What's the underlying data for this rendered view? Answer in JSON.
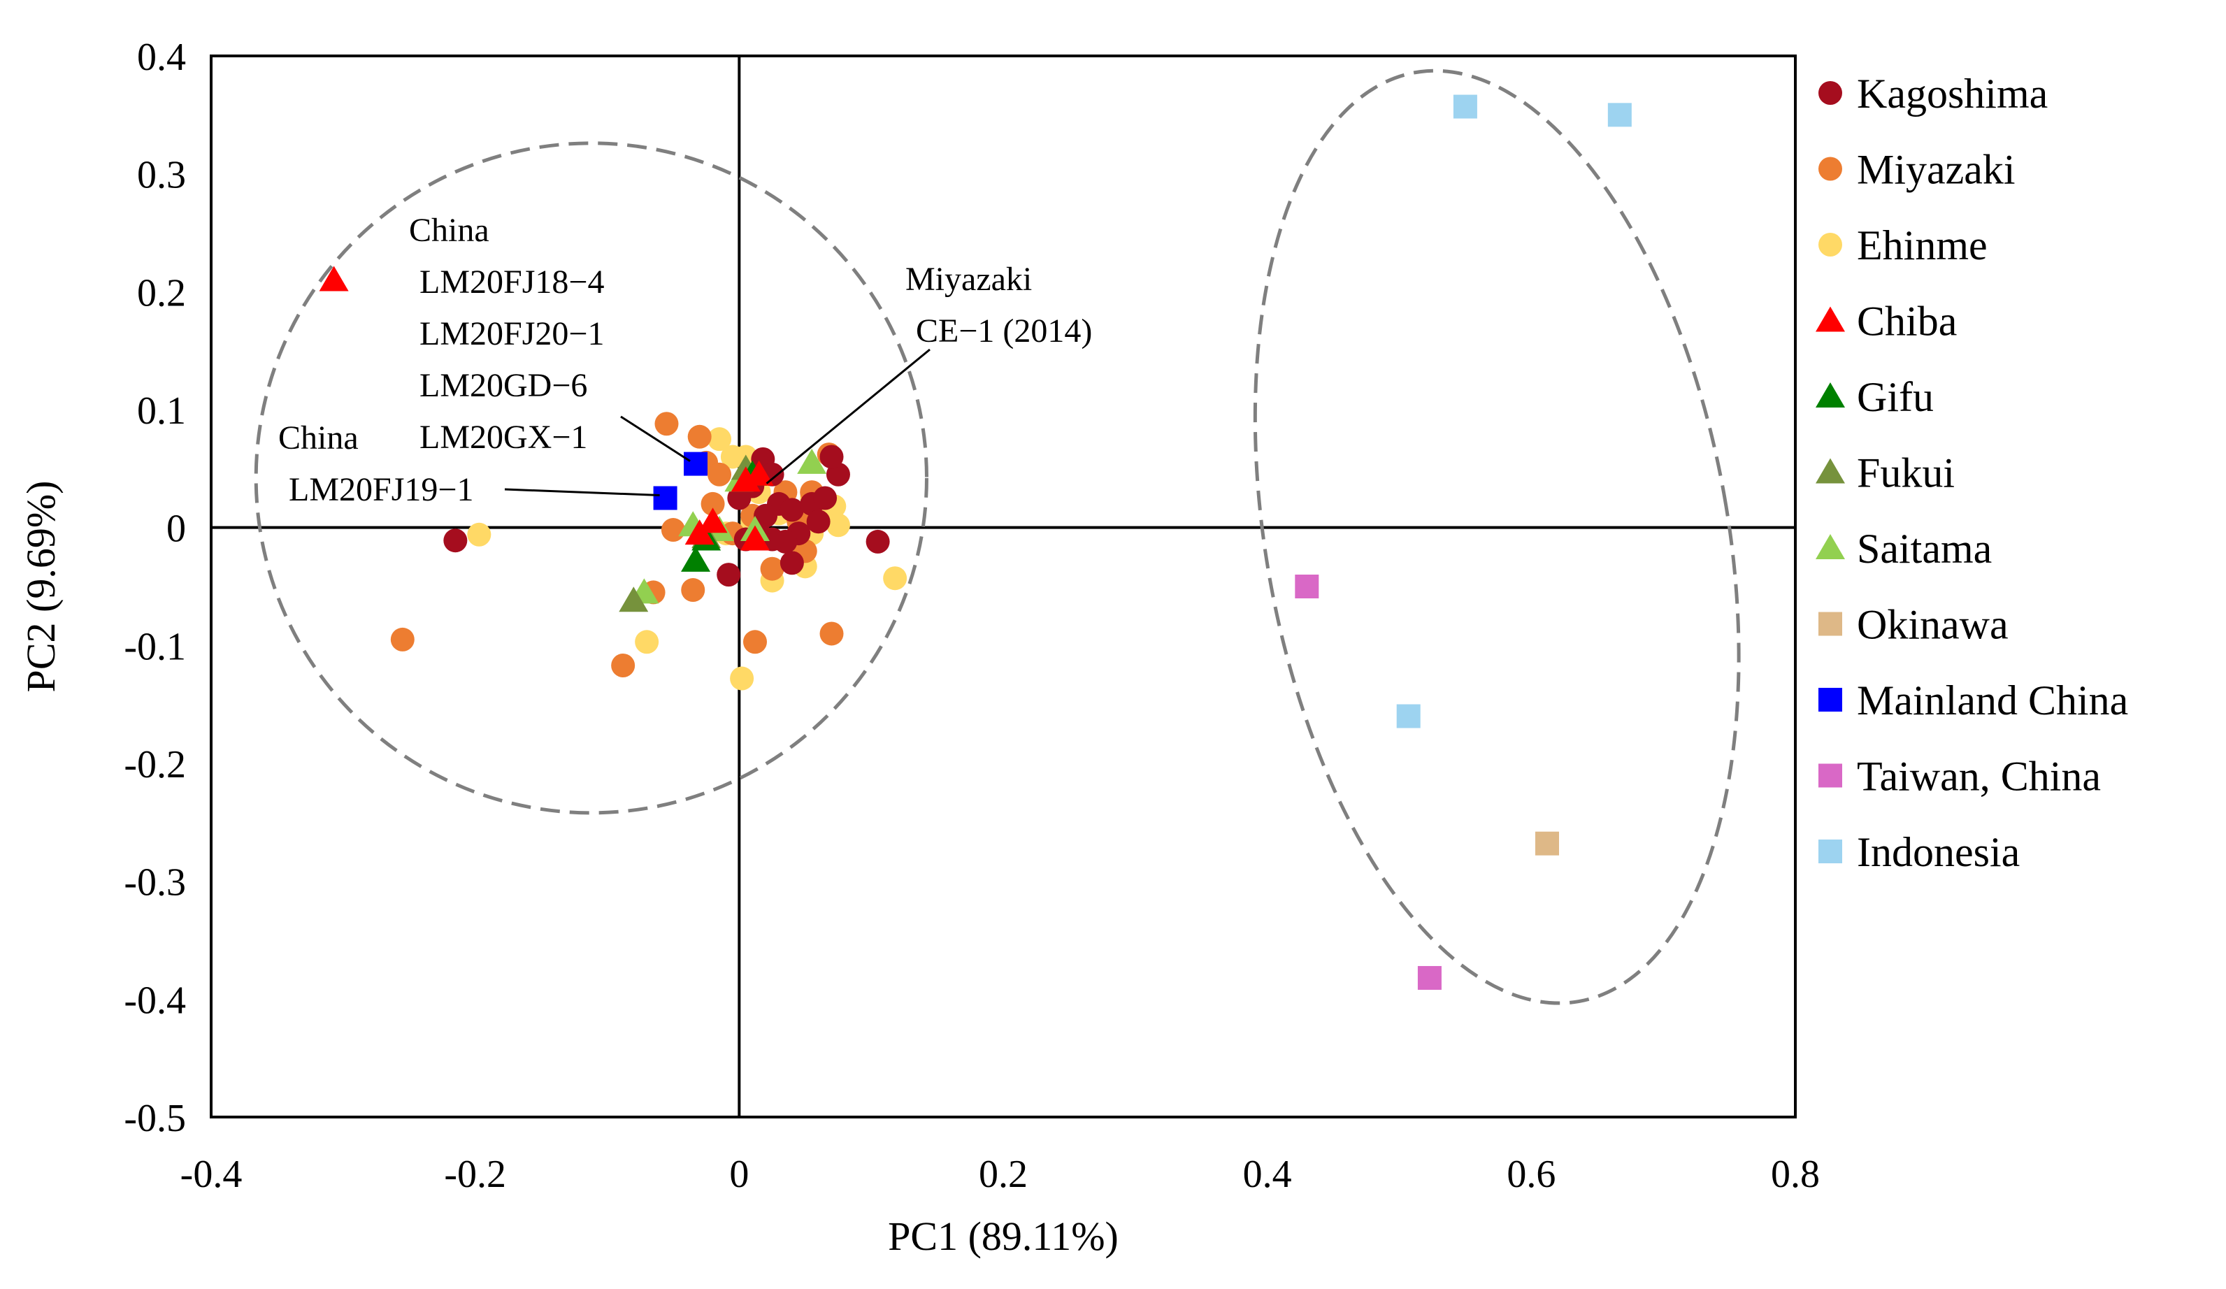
{
  "chart_data": {
    "type": "scatter",
    "xlabel": "PC1 (89.11%)",
    "ylabel": "PC2 (9.69%)",
    "xlim": [
      -0.4,
      0.8
    ],
    "ylim": [
      -0.5,
      0.4
    ],
    "xticks": [
      -0.4,
      -0.2,
      0,
      0.2,
      0.4,
      0.6,
      0.8
    ],
    "xtick_labels": [
      "-0.4",
      "-0.2",
      "0",
      "0.2",
      "0.4",
      "0.6",
      "0.8"
    ],
    "yticks": [
      0.4,
      0.3,
      0.2,
      0.1,
      0,
      -0.1,
      -0.2,
      -0.3,
      -0.4,
      -0.5
    ],
    "ytick_labels": [
      "0.4",
      "0.3",
      "0.2",
      "0.1",
      "0",
      "-0.1",
      "-0.2",
      "-0.3",
      "-0.4",
      "-0.5"
    ],
    "grid": false,
    "legend_position": "right",
    "series": [
      {
        "name": "Kagoshima",
        "marker": "circle",
        "color": "#A50D1E",
        "points": [
          [
            -0.215,
            -0.011
          ],
          [
            0.105,
            -0.012
          ],
          [
            0.018,
            0.058
          ],
          [
            0.025,
            0.045
          ],
          [
            0.01,
            0.035
          ],
          [
            0.0,
            0.025
          ],
          [
            0.03,
            0.02
          ],
          [
            0.04,
            0.015
          ],
          [
            0.02,
            0.01
          ],
          [
            0.055,
            0.02
          ],
          [
            0.065,
            0.025
          ],
          [
            0.075,
            0.045
          ],
          [
            0.07,
            0.06
          ],
          [
            0.06,
            0.005
          ],
          [
            0.045,
            -0.005
          ],
          [
            0.035,
            -0.012
          ],
          [
            0.025,
            -0.01
          ],
          [
            0.015,
            -0.005
          ],
          [
            0.005,
            -0.01
          ],
          [
            -0.008,
            -0.04
          ],
          [
            0.04,
            -0.03
          ]
        ]
      },
      {
        "name": "Miyazaki",
        "marker": "circle",
        "color": "#ED7D31",
        "points": [
          [
            -0.255,
            -0.095
          ],
          [
            -0.088,
            -0.117
          ],
          [
            -0.065,
            -0.055
          ],
          [
            -0.055,
            0.088
          ],
          [
            -0.05,
            -0.002
          ],
          [
            -0.035,
            -0.053
          ],
          [
            -0.03,
            0.077
          ],
          [
            -0.025,
            0.055
          ],
          [
            -0.02,
            0.02
          ],
          [
            -0.015,
            0.045
          ],
          [
            0.01,
            0.01
          ],
          [
            0.035,
            0.03
          ],
          [
            0.045,
            0.005
          ],
          [
            0.055,
            0.03
          ],
          [
            0.068,
            0.062
          ],
          [
            0.07,
            -0.09
          ],
          [
            0.012,
            -0.097
          ],
          [
            0.025,
            -0.035
          ],
          [
            0.05,
            -0.02
          ],
          [
            -0.005,
            -0.005
          ]
        ]
      },
      {
        "name": "Ehinme",
        "marker": "circle",
        "color": "#FFD966",
        "points": [
          [
            -0.197,
            -0.006
          ],
          [
            -0.07,
            -0.097
          ],
          [
            0.118,
            -0.043
          ],
          [
            0.002,
            -0.128
          ],
          [
            0.025,
            -0.045
          ],
          [
            0.05,
            -0.033
          ],
          [
            0.055,
            -0.005
          ],
          [
            0.06,
            0.02
          ],
          [
            0.072,
            0.018
          ],
          [
            0.075,
            0.002
          ],
          [
            0.055,
            0.025
          ],
          [
            -0.015,
            0.075
          ],
          [
            -0.005,
            0.06
          ],
          [
            0.005,
            0.06
          ],
          [
            0.01,
            0.005
          ],
          [
            0.03,
            0.012
          ],
          [
            0.045,
            -0.025
          ],
          [
            -0.01,
            -0.005
          ],
          [
            0.015,
            0.03
          ]
        ]
      },
      {
        "name": "Chiba",
        "marker": "triangle",
        "color": "#FF0000",
        "points": [
          [
            -0.307,
            0.21
          ],
          [
            0.012,
            -0.01
          ],
          [
            -0.03,
            -0.005
          ],
          [
            0.005,
            0.04
          ],
          [
            0.015,
            0.045
          ],
          [
            -0.02,
            0.005
          ]
        ]
      },
      {
        "name": "Gifu",
        "marker": "triangle",
        "color": "#008000",
        "points": [
          [
            -0.033,
            -0.028
          ],
          [
            -0.025,
            -0.01
          ],
          [
            0.01,
            0.045
          ]
        ]
      },
      {
        "name": "Fukui",
        "marker": "triangle",
        "color": "#76923C",
        "points": [
          [
            -0.08,
            -0.062
          ],
          [
            -0.025,
            -0.008
          ],
          [
            0.005,
            0.05
          ]
        ]
      },
      {
        "name": "Saitama",
        "marker": "triangle",
        "color": "#92D050",
        "points": [
          [
            -0.072,
            -0.055
          ],
          [
            -0.035,
            0.002
          ],
          [
            -0.015,
            -0.002
          ],
          [
            0.0,
            0.04
          ],
          [
            0.055,
            0.055
          ],
          [
            0.012,
            -0.002
          ]
        ]
      },
      {
        "name": "Okinawa",
        "marker": "square",
        "color": "#DEB887",
        "points": [
          [
            0.612,
            -0.268
          ]
        ]
      },
      {
        "name": "Mainland China",
        "marker": "square",
        "color": "#0000FF",
        "points": [
          [
            -0.033,
            0.054
          ],
          [
            -0.056,
            0.025
          ]
        ]
      },
      {
        "name": "Taiwan, China",
        "marker": "square",
        "color": "#D968C6",
        "points": [
          [
            0.43,
            -0.05
          ],
          [
            0.523,
            -0.382
          ]
        ]
      },
      {
        "name": "Indonesia",
        "marker": "square",
        "color": "#9DD3F0",
        "points": [
          [
            0.55,
            0.357
          ],
          [
            0.667,
            0.35
          ],
          [
            0.507,
            -0.16
          ]
        ]
      }
    ],
    "ellipses": [
      {
        "name": "cluster-left",
        "cx": -0.112,
        "cy": 0.042,
        "rx": 0.254,
        "ry": 0.284
      },
      {
        "name": "cluster-right",
        "cx": 0.574,
        "cy": -0.008,
        "rx": 0.175,
        "ry": 0.4,
        "rotation_deg": -10
      }
    ],
    "annotations": [
      {
        "id": "china-group",
        "lines": [
          "China",
          "LM20FJ18−4",
          "LM20FJ20−1",
          "LM20GD−6",
          "LM20GX−1"
        ],
        "target": [
          -0.033,
          0.054
        ]
      },
      {
        "id": "china-single",
        "lines": [
          "China",
          "LM20FJ19−1"
        ],
        "target": [
          -0.056,
          0.025
        ]
      },
      {
        "id": "miyazaki",
        "lines": [
          "Miyazaki",
          "CE−1 (2014)"
        ],
        "target": [
          0.025,
          0.035
        ]
      }
    ]
  }
}
